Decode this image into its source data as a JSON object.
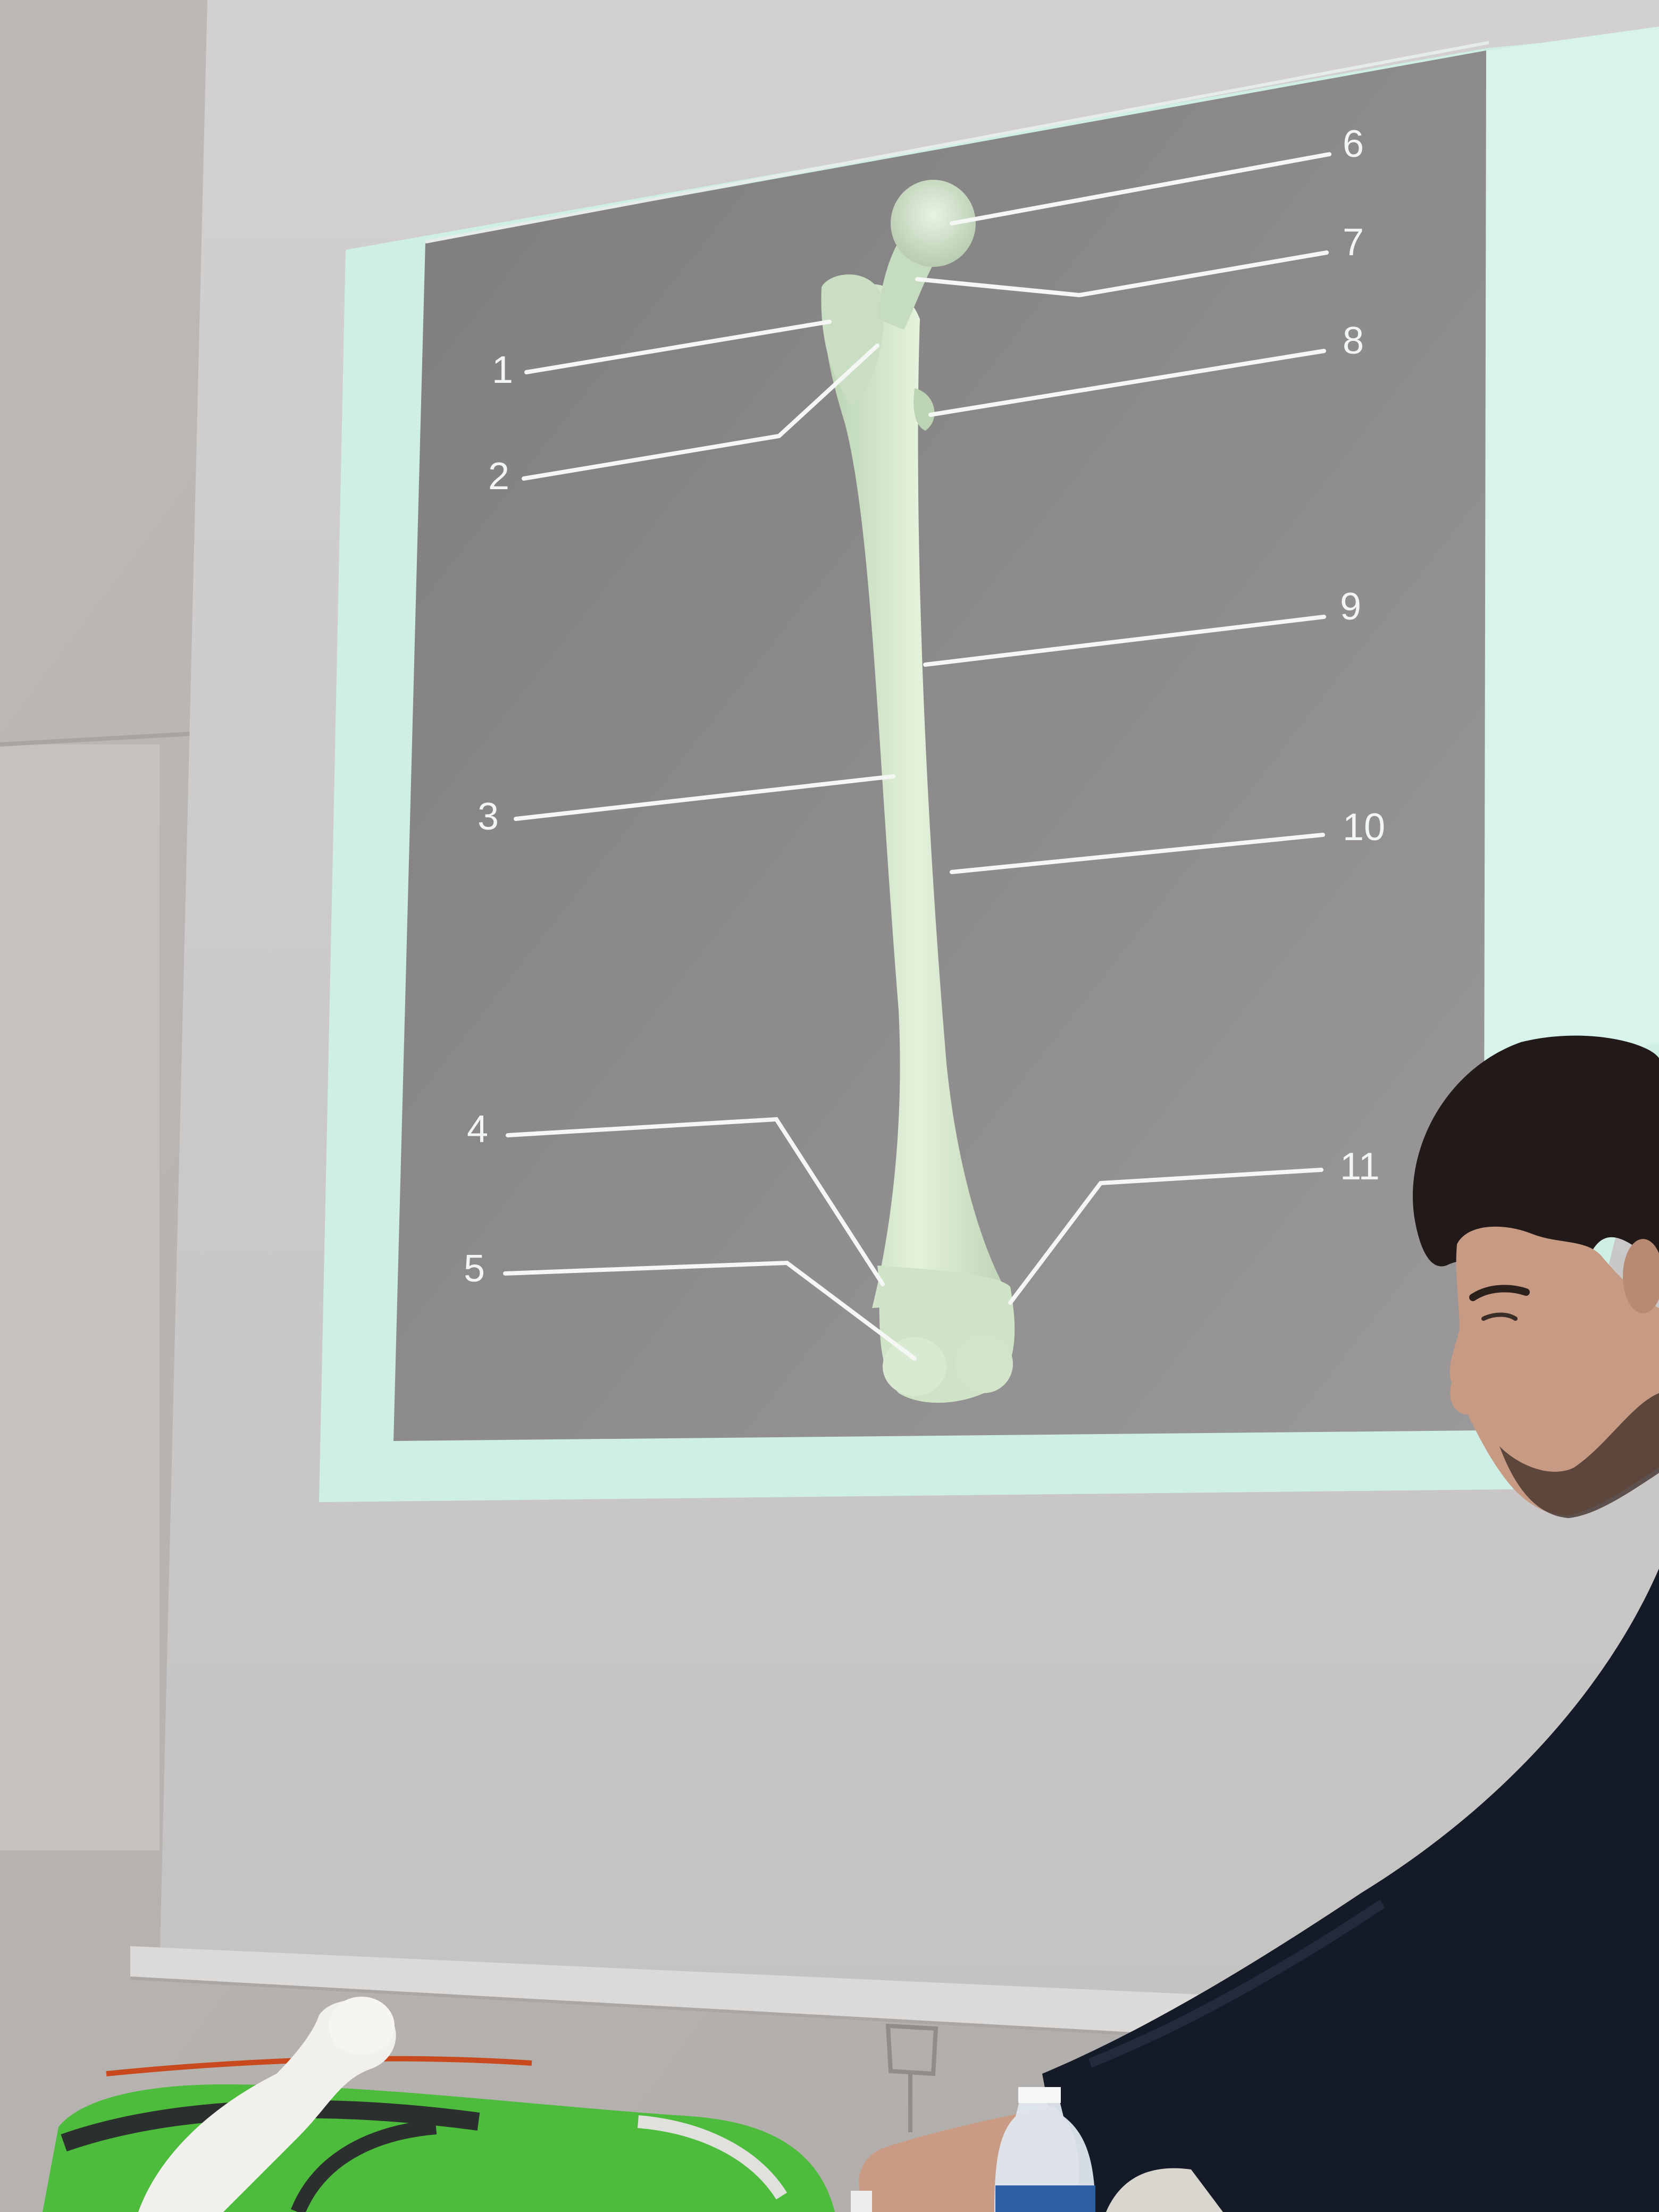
{
  "scene": {
    "description_type": "photo",
    "colors": {
      "wall": "#b9b6b3",
      "screen": "#cfcdcc",
      "slide_border": "#cfeee6",
      "slide_bg": "#8e8c8c",
      "bone": "#d6e8cc",
      "leader_line": "#f4f7f4",
      "sweater": "#151a28",
      "hair": "#201a18",
      "skin": "#c79a84",
      "bag_green": "#4dbb3c"
    }
  },
  "slide": {
    "labels": [
      {
        "id": "label-1",
        "text": "1"
      },
      {
        "id": "label-2",
        "text": "2"
      },
      {
        "id": "label-3",
        "text": "3"
      },
      {
        "id": "label-4",
        "text": "4"
      },
      {
        "id": "label-5",
        "text": "5"
      },
      {
        "id": "label-6",
        "text": "6"
      },
      {
        "id": "label-7",
        "text": "7"
      },
      {
        "id": "label-8",
        "text": "8"
      },
      {
        "id": "label-9",
        "text": "9"
      },
      {
        "id": "label-10",
        "text": "10"
      },
      {
        "id": "label-11",
        "text": "11"
      }
    ]
  }
}
